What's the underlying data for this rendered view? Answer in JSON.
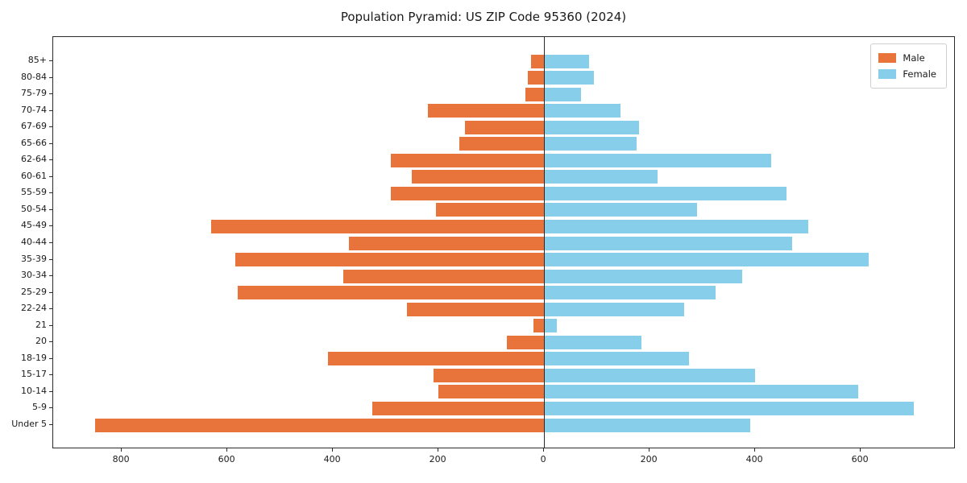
{
  "chart_data": {
    "type": "bar",
    "variant": "population-pyramid-horizontal",
    "title": "Population Pyramid: US ZIP Code 95360 (2024)",
    "categories": [
      "85+",
      "80-84",
      "75-79",
      "70-74",
      "67-69",
      "65-66",
      "62-64",
      "60-61",
      "55-59",
      "50-54",
      "45-49",
      "40-44",
      "35-39",
      "30-34",
      "25-29",
      "22-24",
      "21",
      "20",
      "18-19",
      "15-17",
      "10-14",
      "5-9",
      "Under 5"
    ],
    "series": [
      {
        "name": "Male",
        "color": "#e8743b",
        "direction": "left",
        "values": [
          25,
          30,
          35,
          220,
          150,
          160,
          290,
          250,
          290,
          205,
          630,
          370,
          585,
          380,
          580,
          260,
          20,
          70,
          410,
          210,
          200,
          325,
          850
        ]
      },
      {
        "name": "Female",
        "color": "#87ceeb",
        "direction": "right",
        "values": [
          85,
          95,
          70,
          145,
          180,
          175,
          430,
          215,
          460,
          290,
          500,
          470,
          615,
          375,
          325,
          265,
          25,
          185,
          275,
          400,
          595,
          700,
          390
        ]
      }
    ],
    "xlim": [
      -930,
      780
    ],
    "x_ticks": [
      {
        "value": -800,
        "label": "800"
      },
      {
        "value": -600,
        "label": "600"
      },
      {
        "value": -400,
        "label": "400"
      },
      {
        "value": -200,
        "label": "200"
      },
      {
        "value": 0,
        "label": "0"
      },
      {
        "value": 200,
        "label": "200"
      },
      {
        "value": 400,
        "label": "400"
      },
      {
        "value": 600,
        "label": "600"
      }
    ],
    "grid": false,
    "legend_position": "top-right"
  }
}
